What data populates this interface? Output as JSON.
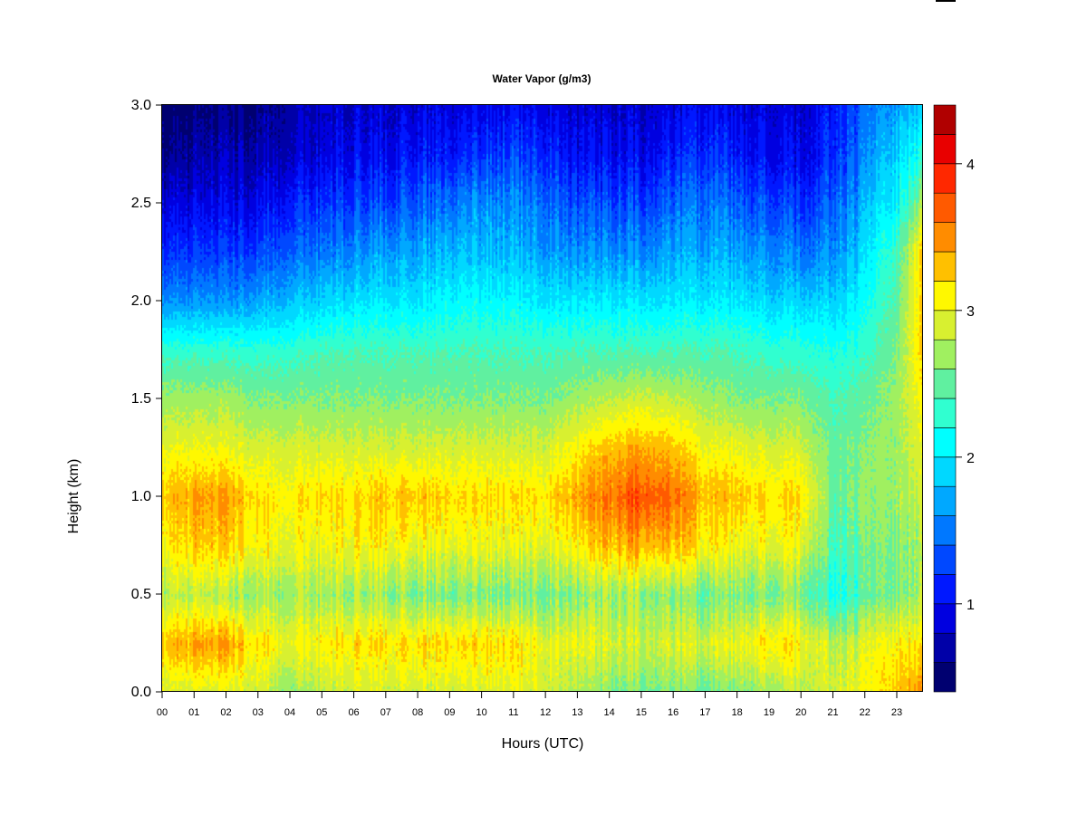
{
  "chart_data": {
    "type": "heatmap",
    "title": "Water Vapor (g/m3)",
    "xlabel": "Hours (UTC)",
    "ylabel": "Height (km)",
    "xlim": [
      0,
      23.8
    ],
    "ylim": [
      0,
      3.0
    ],
    "x_ticks": [
      "00",
      "01",
      "02",
      "03",
      "04",
      "05",
      "06",
      "07",
      "08",
      "09",
      "10",
      "11",
      "12",
      "13",
      "14",
      "15",
      "16",
      "17",
      "18",
      "19",
      "20",
      "21",
      "22",
      "23"
    ],
    "y_ticks": [
      "0.0",
      "0.5",
      "1.0",
      "1.5",
      "2.0",
      "2.5",
      "3.0"
    ],
    "colorbar": {
      "levels_min": 0.4,
      "levels_max": 4.4,
      "step": 0.2,
      "ticks": [
        "1",
        "2",
        "3",
        "4"
      ],
      "colors": [
        "#000070",
        "#0000A8",
        "#0000E0",
        "#0018FF",
        "#0048FF",
        "#0078FF",
        "#00A8FF",
        "#00D8FF",
        "#00FFFF",
        "#30FFD0",
        "#60F0A0",
        "#A0F060",
        "#D8F030",
        "#FFF800",
        "#FFC000",
        "#FF8C00",
        "#FF5A00",
        "#FF2800",
        "#E80000",
        "#B00000"
      ]
    },
    "heights_km": [
      0,
      0.25,
      0.5,
      0.75,
      1.0,
      1.25,
      1.5,
      1.75,
      2.0,
      2.25,
      2.5,
      2.75,
      3.0
    ],
    "hours": [
      0,
      1,
      2,
      3,
      4,
      5,
      6,
      7,
      8,
      9,
      10,
      11,
      12,
      13,
      14,
      15,
      16,
      17,
      18,
      19,
      20,
      21,
      22,
      23,
      23.8
    ],
    "values": [
      [
        2.9,
        3.3,
        2.8,
        3.1,
        3.3,
        3.0,
        2.7,
        2.3,
        1.6,
        1.2,
        0.9,
        0.6,
        0.45
      ],
      [
        2.9,
        3.4,
        2.8,
        3.2,
        3.4,
        3.0,
        2.7,
        2.3,
        1.6,
        1.2,
        0.9,
        0.65,
        0.5
      ],
      [
        2.9,
        3.4,
        2.7,
        3.2,
        3.4,
        3.0,
        2.7,
        2.3,
        1.6,
        1.2,
        0.9,
        0.7,
        0.55
      ],
      [
        2.9,
        3.2,
        2.7,
        3.1,
        3.2,
        2.9,
        2.6,
        2.3,
        1.7,
        1.3,
        1.0,
        0.75,
        0.6
      ],
      [
        2.6,
        3.0,
        2.7,
        3.0,
        3.1,
        2.9,
        2.6,
        2.3,
        1.8,
        1.4,
        1.1,
        0.8,
        0.7
      ],
      [
        2.8,
        3.1,
        2.7,
        3.0,
        3.2,
        2.9,
        2.6,
        2.4,
        1.9,
        1.5,
        1.2,
        0.9,
        0.8
      ],
      [
        2.9,
        3.2,
        2.7,
        3.1,
        3.2,
        2.9,
        2.6,
        2.4,
        2.0,
        1.6,
        1.3,
        1.0,
        0.85
      ],
      [
        2.9,
        3.2,
        2.7,
        3.1,
        3.3,
        2.9,
        2.6,
        2.4,
        2.0,
        1.7,
        1.3,
        1.0,
        0.85
      ],
      [
        2.9,
        3.2,
        2.6,
        3.0,
        3.3,
        2.9,
        2.6,
        2.4,
        2.0,
        1.7,
        1.4,
        1.1,
        0.9
      ],
      [
        2.9,
        3.2,
        2.6,
        3.0,
        3.2,
        2.9,
        2.6,
        2.4,
        2.1,
        1.8,
        1.5,
        1.1,
        0.9
      ],
      [
        2.9,
        3.2,
        2.6,
        3.0,
        3.2,
        2.9,
        2.6,
        2.4,
        2.1,
        1.8,
        1.6,
        1.2,
        0.95
      ],
      [
        3.0,
        3.2,
        2.6,
        3.0,
        3.2,
        2.9,
        2.6,
        2.4,
        2.1,
        1.8,
        1.6,
        1.3,
        1.0
      ],
      [
        2.9,
        3.0,
        2.6,
        3.0,
        3.2,
        2.9,
        2.6,
        2.4,
        2.0,
        1.7,
        1.5,
        1.2,
        0.95
      ],
      [
        2.7,
        3.0,
        2.6,
        3.1,
        3.4,
        3.1,
        2.7,
        2.4,
        2.0,
        1.6,
        1.3,
        1.0,
        0.85
      ],
      [
        2.6,
        2.9,
        2.7,
        3.3,
        3.6,
        3.3,
        2.8,
        2.4,
        2.0,
        1.6,
        1.3,
        1.0,
        0.85
      ],
      [
        2.6,
        2.9,
        2.7,
        3.4,
        3.8,
        3.4,
        2.9,
        2.4,
        2.0,
        1.6,
        1.3,
        1.0,
        0.85
      ],
      [
        2.6,
        2.9,
        2.6,
        3.3,
        3.6,
        3.3,
        2.8,
        2.4,
        2.0,
        1.7,
        1.4,
        1.1,
        0.9
      ],
      [
        2.5,
        2.9,
        2.5,
        3.1,
        3.3,
        3.0,
        2.7,
        2.4,
        2.0,
        1.7,
        1.5,
        1.2,
        0.95
      ],
      [
        2.6,
        3.0,
        2.6,
        3.0,
        3.3,
        3.0,
        2.6,
        2.4,
        2.0,
        1.7,
        1.4,
        1.1,
        0.9
      ],
      [
        2.7,
        3.2,
        2.6,
        3.0,
        3.2,
        2.9,
        2.6,
        2.3,
        1.9,
        1.6,
        1.3,
        1.0,
        0.9
      ],
      [
        2.8,
        3.1,
        2.6,
        3.0,
        3.2,
        2.9,
        2.6,
        2.3,
        1.9,
        1.5,
        1.2,
        0.95,
        0.85
      ],
      [
        2.9,
        2.8,
        2.2,
        2.4,
        2.5,
        2.5,
        2.4,
        2.2,
        1.9,
        1.6,
        1.4,
        1.2,
        1.1
      ],
      [
        3.0,
        2.9,
        2.4,
        2.5,
        2.6,
        2.6,
        2.5,
        2.3,
        2.1,
        1.9,
        1.7,
        1.5,
        1.4
      ],
      [
        3.3,
        3.1,
        2.6,
        2.6,
        2.7,
        2.7,
        2.7,
        2.6,
        2.5,
        2.4,
        2.1,
        1.9,
        1.7
      ],
      [
        3.5,
        3.2,
        2.8,
        2.8,
        2.9,
        3.0,
        3.1,
        3.3,
        3.3,
        3.3,
        2.8,
        2.3,
        1.9
      ]
    ]
  }
}
